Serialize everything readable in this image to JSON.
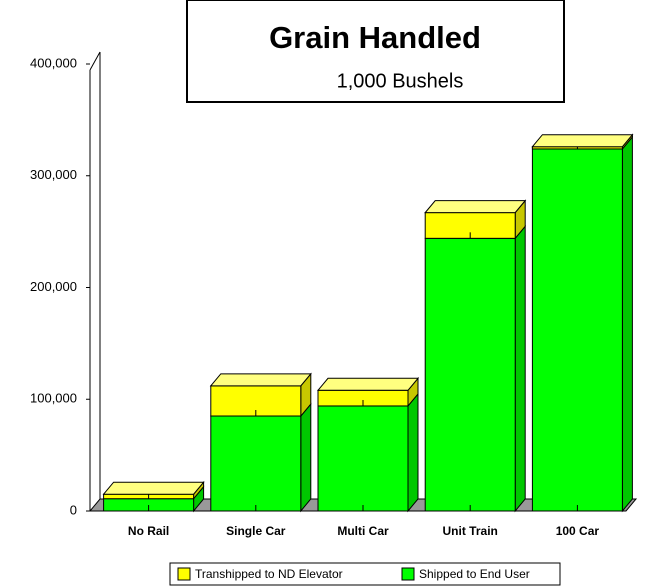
{
  "chart_data": {
    "type": "bar3d_stacked",
    "title": "Grain Handled",
    "subtitle": "1,000 Bushels",
    "categories": [
      "No Rail",
      "Single Car",
      "Multi Car",
      "Unit Train",
      "100 Car"
    ],
    "series": [
      {
        "name": "Transhipped to ND Elevator",
        "color": "#ffff00",
        "values": [
          4000,
          27000,
          14000,
          23000,
          2000
        ]
      },
      {
        "name": "Shipped to End User",
        "color": "#00ff00",
        "values": [
          11000,
          85000,
          94000,
          244000,
          324000
        ]
      }
    ],
    "ylim": [
      0,
      400000
    ],
    "yticks": [
      0,
      {
        "value": 100000,
        "label": "100,000"
      },
      {
        "value": 200000,
        "label": "200,000"
      },
      {
        "value": 300000,
        "label": "300,000"
      },
      {
        "value": 400000,
        "label": "400,000"
      }
    ],
    "grid": false,
    "legend": "bottom"
  }
}
